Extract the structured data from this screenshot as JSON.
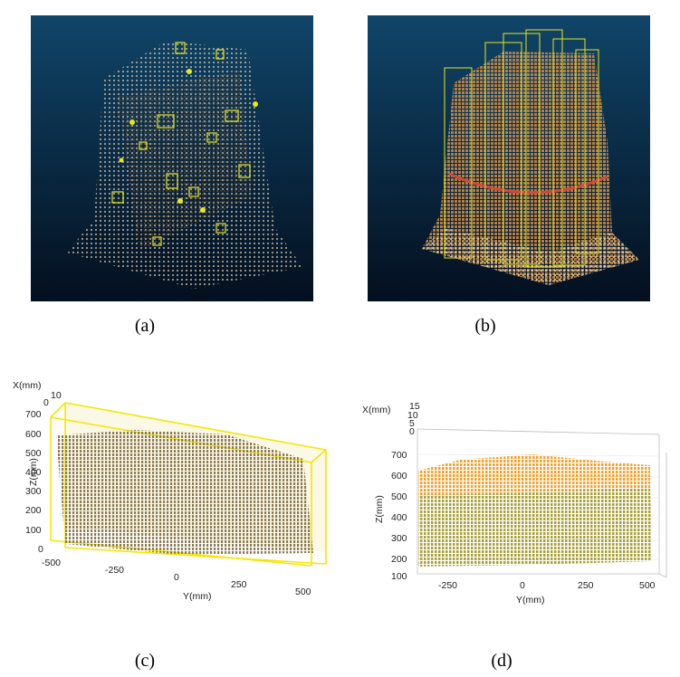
{
  "figure": {
    "captions": [
      "(a)",
      "(b)",
      "(c)",
      "(d)"
    ]
  },
  "panel_a": {
    "background_top": "#104569",
    "background_bottom": "#040f1e"
  },
  "panel_b": {
    "background_top": "#104569",
    "background_bottom": "#040f1e"
  },
  "panel_c": {
    "x_axis_label": "X(mm)",
    "z_axis_label": "Z(mm)",
    "y_axis_label": "Y(mm)",
    "x_ticks": [
      "10",
      "0"
    ],
    "z_ticks": [
      "700",
      "600",
      "500",
      "400",
      "300",
      "200",
      "100",
      "0"
    ],
    "y_ticks": [
      "-500",
      "-250",
      "0",
      "250",
      "500"
    ],
    "point_color": "#8b7b56",
    "box_color": "#f5e600"
  },
  "panel_d": {
    "x_axis_label": "X(mm)",
    "z_axis_label": "Z(mm)",
    "y_axis_label": "Y(mm)",
    "x_ticks": [
      "15",
      "10",
      "5",
      "0"
    ],
    "z_ticks": [
      "700",
      "600",
      "500",
      "400",
      "300",
      "200",
      "100"
    ],
    "y_ticks": [
      "-250",
      "0",
      "250",
      "500"
    ],
    "upper_color": "#f4a02a",
    "lower_color": "#a8a03a"
  }
}
